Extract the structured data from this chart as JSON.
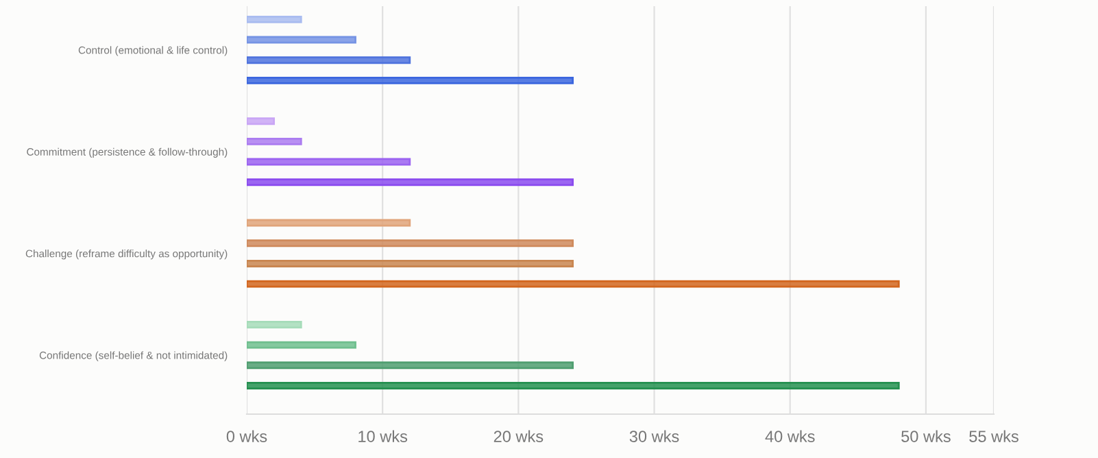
{
  "chart_data": {
    "type": "bar",
    "orientation": "horizontal",
    "categories": [
      "Control (emotional & life control)",
      "Commitment (persistence & follow-through)",
      "Challenge (reframe difficulty as opportunity)",
      "Confidence (self-belief & not intimidated)"
    ],
    "series": [
      {
        "values": [
          4,
          2,
          12,
          4
        ],
        "colors": [
          "#a9bcf0",
          "#c9a6f5",
          "#e0a47a",
          "#a6dcb9"
        ]
      },
      {
        "values": [
          8,
          4,
          24,
          8
        ],
        "colors": [
          "#7593e4",
          "#ab7cf0",
          "#cf8a5c",
          "#6fbf8e"
        ]
      },
      {
        "values": [
          12,
          12,
          24,
          24
        ],
        "colors": [
          "#4f73dd",
          "#9b63f0",
          "#c98650",
          "#4f9e70"
        ]
      },
      {
        "values": [
          24,
          24,
          48,
          48
        ],
        "colors": [
          "#3b66de",
          "#8a4bee",
          "#d2661e",
          "#259050"
        ]
      }
    ],
    "xlim": [
      0,
      55
    ],
    "xticks": [
      {
        "value": 0,
        "label": "0 wks"
      },
      {
        "value": 10,
        "label": "10 wks"
      },
      {
        "value": 20,
        "label": "20 wks"
      },
      {
        "value": 30,
        "label": "30 wks"
      },
      {
        "value": 40,
        "label": "40 wks"
      },
      {
        "value": 50,
        "label": "50 wks"
      },
      {
        "value": 55,
        "label": "55 wks"
      }
    ],
    "grid": "x"
  }
}
